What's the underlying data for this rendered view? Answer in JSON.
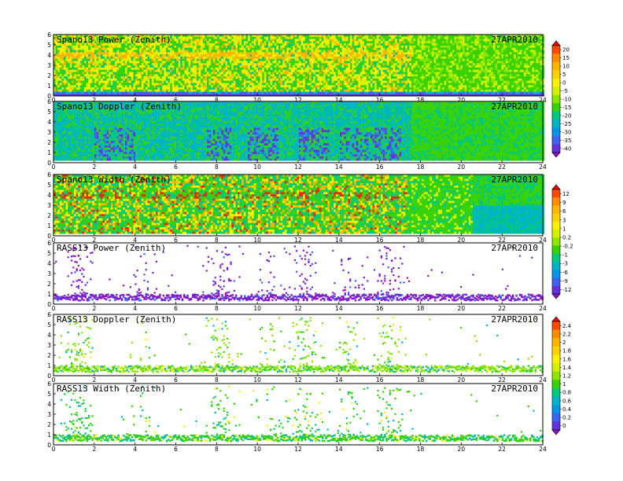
{
  "chart_data": [
    {
      "type": "heatmap",
      "title": "Spano13 Power (Zenith)",
      "date": "27APR2010",
      "x_ticks": [
        "0",
        "2",
        "4",
        "6",
        "8",
        "10",
        "12",
        "14",
        "16",
        "18",
        "20",
        "22",
        "24"
      ],
      "y_ticks": [
        "0",
        "1",
        "2",
        "3",
        "4",
        "5",
        "6"
      ],
      "xlim": [
        0,
        24
      ],
      "ylim": [
        0,
        6
      ],
      "colorbar_group": 0
    },
    {
      "type": "heatmap",
      "title": "Spano13 Doppler (Zenith)",
      "date": "27APR2010",
      "x_ticks": [
        "0",
        "2",
        "4",
        "6",
        "8",
        "10",
        "12",
        "14",
        "16",
        "18",
        "20",
        "22",
        "24"
      ],
      "y_ticks": [
        "0",
        "1",
        "2",
        "3",
        "4",
        "5",
        "6"
      ],
      "xlim": [
        0,
        24
      ],
      "ylim": [
        0,
        6
      ],
      "colorbar_group": 0
    },
    {
      "type": "heatmap",
      "title": "Spano13 Width (Zenith)",
      "date": "27APR2010",
      "x_ticks": [
        "0",
        "2",
        "4",
        "6",
        "8",
        "10",
        "12",
        "14",
        "16",
        "18",
        "20",
        "22",
        "24"
      ],
      "y_ticks": [
        "0",
        "1",
        "2",
        "3",
        "4",
        "5",
        "6"
      ],
      "xlim": [
        0,
        24
      ],
      "ylim": [
        0,
        6
      ],
      "colorbar_group": 1
    },
    {
      "type": "heatmap",
      "title": "RASS13 Power (Zenith)",
      "date": "27APR2010",
      "x_ticks": [
        "0",
        "2",
        "4",
        "6",
        "8",
        "10",
        "12",
        "14",
        "16",
        "18",
        "20",
        "22",
        "24"
      ],
      "y_ticks": [
        "0",
        "1",
        "2",
        "3",
        "4",
        "5",
        "6"
      ],
      "xlim": [
        0,
        24
      ],
      "ylim": [
        0,
        6
      ],
      "colorbar_group": 1
    },
    {
      "type": "heatmap",
      "title": "RASS13 Doppler (Zenith)",
      "date": "27APR2010",
      "x_ticks": [
        "0",
        "2",
        "4",
        "6",
        "8",
        "10",
        "12",
        "14",
        "16",
        "18",
        "20",
        "22",
        "24"
      ],
      "y_ticks": [
        "0",
        "1",
        "2",
        "3",
        "4",
        "5",
        "6"
      ],
      "xlim": [
        0,
        24
      ],
      "ylim": [
        0,
        6
      ],
      "colorbar_group": 2
    },
    {
      "type": "heatmap",
      "title": "RASS13 Width (Zenith)",
      "date": "27APR2010",
      "x_ticks": [
        "0",
        "2",
        "4",
        "6",
        "8",
        "10",
        "12",
        "14",
        "16",
        "18",
        "20",
        "22",
        "24"
      ],
      "y_ticks": [
        "0",
        "1",
        "2",
        "3",
        "4",
        "5",
        "6"
      ],
      "xlim": [
        0,
        24
      ],
      "ylim": [
        0,
        6
      ],
      "colorbar_group": 2
    }
  ],
  "colorbars": [
    {
      "labels": [
        "20",
        "15",
        "10",
        "5",
        "0",
        "-5",
        "-10",
        "-15",
        "-20",
        "-25",
        "-30",
        "-35",
        "-40"
      ],
      "colors": [
        "#ff0000",
        "#ff4a00",
        "#ff8c00",
        "#ffb400",
        "#ffd000",
        "#fff000",
        "#d2f000",
        "#8ce600",
        "#37d200",
        "#00c87d",
        "#00b4c8",
        "#0096e6",
        "#3c64f0",
        "#6432dc",
        "#8c14c8"
      ]
    },
    {
      "labels": [
        "12",
        "9",
        "6",
        "3",
        "1",
        "0.2",
        "-0.2",
        "-1",
        "-3",
        "-6",
        "-9",
        "-12"
      ],
      "colors": [
        "#ff0000",
        "#ff4a00",
        "#ff8c00",
        "#ffb400",
        "#ffd000",
        "#fff000",
        "#d2f000",
        "#8ce600",
        "#37d200",
        "#00c87d",
        "#00b4c8",
        "#0096e6",
        "#3c64f0",
        "#6432dc",
        "#8c14c8"
      ]
    },
    {
      "labels": [
        "2.4",
        "2.2",
        "2",
        "1.8",
        "1.6",
        "1.4",
        "1.2",
        "1",
        "0.8",
        "0.6",
        "0.4",
        "0.2",
        "0"
      ],
      "colors": [
        "#ff0000",
        "#ff4a00",
        "#ff8c00",
        "#ffb400",
        "#ffd000",
        "#fff000",
        "#d2f000",
        "#8ce600",
        "#37d200",
        "#00c87d",
        "#00b4c8",
        "#0096e6",
        "#3c64f0",
        "#6432dc",
        "#8c14c8"
      ]
    }
  ]
}
